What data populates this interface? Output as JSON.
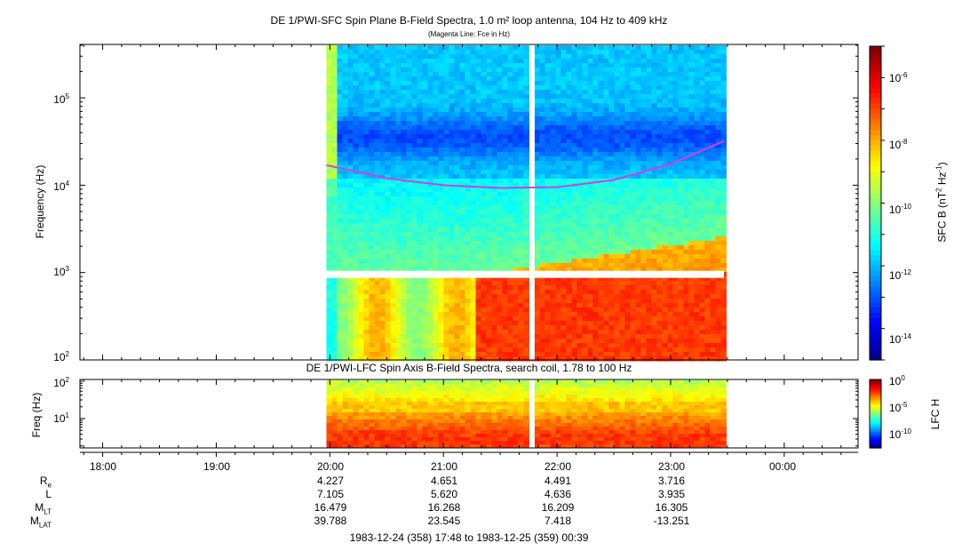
{
  "chart_data": [
    {
      "type": "heatmap",
      "title": "DE 1/PWI-SFC  Spin Plane B-Field Spectra, 1.0 m² loop antenna, 104 Hz to 409 kHz",
      "subtitle": "(Magenta Line: Fce in Hz)",
      "ylabel": "Frequency (Hz)",
      "yscale": "log",
      "ylim": [
        100,
        409000
      ],
      "yticks": [
        {
          "base": "10",
          "exp": "2"
        },
        {
          "base": "10",
          "exp": "3"
        },
        {
          "base": "10",
          "exp": "4"
        },
        {
          "base": "10",
          "exp": "5"
        }
      ],
      "data_start_hour": 19.97,
      "data_end_hour": 23.47,
      "gap_hour": 21.78,
      "band_gap_hz": 1000,
      "fce_hz": [
        {
          "t": 19.97,
          "f": 17000
        },
        {
          "t": 20.5,
          "f": 12000
        },
        {
          "t": 21.0,
          "f": 10000
        },
        {
          "t": 21.5,
          "f": 9300
        },
        {
          "t": 22.0,
          "f": 9500
        },
        {
          "t": 22.5,
          "f": 11500
        },
        {
          "t": 23.0,
          "f": 17500
        },
        {
          "t": 23.47,
          "f": 32000
        }
      ],
      "colorbar": {
        "label": "SFC B (nT",
        "label_unit": "Hz",
        "ticks": [
          {
            "base": "10",
            "exp": "-6"
          },
          {
            "base": "10",
            "exp": "-8"
          },
          {
            "base": "10",
            "exp": "-10"
          },
          {
            "base": "10",
            "exp": "-12"
          },
          {
            "base": "10",
            "exp": "-14"
          }
        ],
        "range": [
          1e-15,
          1e-05
        ]
      }
    },
    {
      "type": "heatmap",
      "title": "DE 1/PWI-LFC  Spin Axis B-Field Spectra, search coil, 1.78 to 100 Hz",
      "ylabel": "Freq (Hz)",
      "yscale": "log",
      "ylim": [
        1.78,
        100
      ],
      "yticks": [
        {
          "base": "10",
          "exp": "1"
        },
        {
          "base": "10",
          "exp": "2"
        }
      ],
      "colorbar": {
        "label": "LFC H",
        "ticks": [
          {
            "base": "10",
            "exp": "0"
          },
          {
            "base": "10",
            "exp": "-5"
          },
          {
            "base": "10",
            "exp": "-10"
          }
        ]
      }
    }
  ],
  "xaxis": {
    "start_hour": 17.8,
    "end_hour": 24.65,
    "tick_labels": [
      {
        "hour": 18,
        "label": "18:00"
      },
      {
        "hour": 19,
        "label": "19:00"
      },
      {
        "hour": 20,
        "label": "20:00"
      },
      {
        "hour": 21,
        "label": "21:00"
      },
      {
        "hour": 22,
        "label": "22:00"
      },
      {
        "hour": 23,
        "label": "23:00"
      },
      {
        "hour": 24,
        "label": "00:00"
      }
    ]
  },
  "ephemeris": {
    "rows": [
      {
        "name": "R",
        "sub": "e",
        "values": [
          "4.227",
          "4.651",
          "4.491",
          "3.716"
        ]
      },
      {
        "name": "L",
        "sub": "",
        "values": [
          "7.105",
          "5.620",
          "4.636",
          "3.935"
        ]
      },
      {
        "name": "M",
        "sub": "LT",
        "values": [
          "16.479",
          "16.268",
          "16.209",
          "16.305"
        ]
      },
      {
        "name": "M",
        "sub": "LAT",
        "values": [
          "39.788",
          "23.545",
          "7.418",
          "-13.251"
        ]
      }
    ]
  },
  "date_range": "1983-12-24 (358) 17:48 to 1983-12-25 (359) 00:39",
  "colors": {
    "fce_line": "#d43fd9",
    "frame": "#000000"
  }
}
